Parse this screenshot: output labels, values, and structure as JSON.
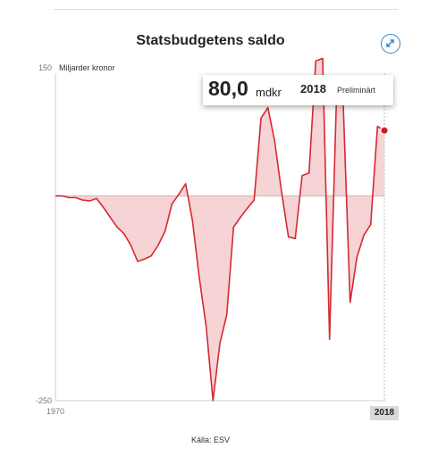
{
  "title": "Statsbudgetens saldo",
  "expand_icon": "expand-arrows-icon",
  "tooltip": {
    "value": "80,0",
    "unit": "mdkr",
    "year": "2018",
    "status": "Preliminärt"
  },
  "source": "Källa: ESV",
  "selected_year": "2018",
  "colors": {
    "line": "#d42a32",
    "area": "#f6d3d5",
    "accent": "#2f86c8",
    "marker": "#c81e28"
  },
  "chart_data": {
    "type": "area",
    "ylabel": "Miljarder kronor",
    "ylim": [
      -250,
      150
    ],
    "y_ticks": [
      "150",
      "-250"
    ],
    "x_ticks": [
      "1970",
      "2018"
    ],
    "x": [
      1970,
      1971,
      1972,
      1973,
      1974,
      1975,
      1976,
      1977,
      1978,
      1979,
      1980,
      1981,
      1982,
      1983,
      1984,
      1985,
      1986,
      1987,
      1988,
      1989,
      1990,
      1991,
      1992,
      1993,
      1994,
      1995,
      1996,
      1997,
      1998,
      1999,
      2000,
      2001,
      2002,
      2003,
      2004,
      2005,
      2006,
      2007,
      2008,
      2009,
      2010,
      2011,
      2012,
      2013,
      2014,
      2015,
      2016,
      2017,
      2018
    ],
    "values": [
      0,
      0,
      -2,
      -2,
      -5,
      -6,
      -3,
      -14,
      -26,
      -38,
      -46,
      -60,
      -80,
      -77,
      -73,
      -60,
      -43,
      -10,
      2,
      15,
      -30,
      -100,
      -160,
      -250,
      -180,
      -145,
      -38,
      -26,
      -15,
      -5,
      95,
      108,
      67,
      5,
      -50,
      -52,
      25,
      28,
      165,
      168,
      -175,
      115,
      112,
      -130,
      -75,
      -48,
      -35,
      85,
      80
    ]
  }
}
